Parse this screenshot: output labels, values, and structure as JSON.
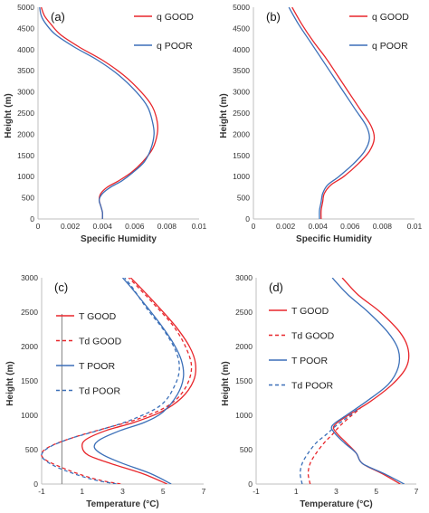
{
  "chart_data": [
    {
      "panel": "a",
      "type": "line",
      "panel_label": "(a)",
      "xlabel": "Specific Humidity",
      "ylabel": "Height (m)",
      "xlim": [
        0,
        0.01
      ],
      "ylim": [
        0,
        5000
      ],
      "xticks": [
        0,
        0.002,
        0.004,
        0.006,
        0.008,
        0.01
      ],
      "xtick_labels": [
        "0",
        "0.002",
        "0.004",
        "0.006",
        "0.008",
        "0.01"
      ],
      "yticks": [
        0,
        500,
        1000,
        1500,
        2000,
        2500,
        3000,
        3500,
        4000,
        4500,
        5000
      ],
      "legend_placement": "top-right",
      "series": [
        {
          "name": "q GOOD",
          "color": "#e8262b",
          "dash": "solid",
          "points": [
            [
              0.004,
              0
            ],
            [
              0.004,
              150
            ],
            [
              0.0039,
              300
            ],
            [
              0.0038,
              450
            ],
            [
              0.0039,
              600
            ],
            [
              0.0043,
              750
            ],
            [
              0.005,
              900
            ],
            [
              0.0058,
              1100
            ],
            [
              0.0065,
              1350
            ],
            [
              0.0071,
              1650
            ],
            [
              0.0074,
              2000
            ],
            [
              0.0074,
              2300
            ],
            [
              0.0071,
              2650
            ],
            [
              0.0064,
              3000
            ],
            [
              0.0053,
              3400
            ],
            [
              0.004,
              3750
            ],
            [
              0.0026,
              4050
            ],
            [
              0.0014,
              4350
            ],
            [
              0.0008,
              4600
            ],
            [
              0.0004,
              4800
            ],
            [
              0.0002,
              5000
            ]
          ]
        },
        {
          "name": "q POOR",
          "color": "#3b6fb8",
          "dash": "solid",
          "points": [
            [
              0.004,
              0
            ],
            [
              0.004,
              150
            ],
            [
              0.0039,
              300
            ],
            [
              0.0038,
              450
            ],
            [
              0.004,
              600
            ],
            [
              0.0045,
              750
            ],
            [
              0.0052,
              900
            ],
            [
              0.0059,
              1100
            ],
            [
              0.0066,
              1350
            ],
            [
              0.007,
              1650
            ],
            [
              0.0072,
              2000
            ],
            [
              0.0071,
              2300
            ],
            [
              0.0068,
              2650
            ],
            [
              0.0061,
              3000
            ],
            [
              0.005,
              3400
            ],
            [
              0.0037,
              3750
            ],
            [
              0.0023,
              4050
            ],
            [
              0.0011,
              4350
            ],
            [
              0.0005,
              4600
            ],
            [
              0.0002,
              4800
            ],
            [
              0.0001,
              5000
            ]
          ]
        }
      ]
    },
    {
      "panel": "b",
      "type": "line",
      "panel_label": "(b)",
      "xlabel": "Specific Humidity",
      "ylabel": "Height (m)",
      "xlim": [
        0,
        0.01
      ],
      "ylim": [
        0,
        5000
      ],
      "xticks": [
        0,
        0.002,
        0.004,
        0.006,
        0.008,
        0.01
      ],
      "xtick_labels": [
        "0",
        "0.002",
        "0.004",
        "0.006",
        "0.008",
        "0.01"
      ],
      "yticks": [
        0,
        500,
        1000,
        1500,
        2000,
        2500,
        3000,
        3500,
        4000,
        4500,
        5000
      ],
      "legend_placement": "top-right",
      "series": [
        {
          "name": "q GOOD",
          "color": "#e8262b",
          "dash": "solid",
          "points": [
            [
              0.0042,
              0
            ],
            [
              0.0042,
              200
            ],
            [
              0.0043,
              400
            ],
            [
              0.0044,
              600
            ],
            [
              0.0048,
              800
            ],
            [
              0.0056,
              1000
            ],
            [
              0.0065,
              1300
            ],
            [
              0.0072,
              1600
            ],
            [
              0.0075,
              1900
            ],
            [
              0.0073,
              2200
            ],
            [
              0.0066,
              2600
            ],
            [
              0.0059,
              3000
            ],
            [
              0.0052,
              3400
            ],
            [
              0.0045,
              3800
            ],
            [
              0.0037,
              4200
            ],
            [
              0.003,
              4600
            ],
            [
              0.0024,
              5000
            ]
          ]
        },
        {
          "name": "q POOR",
          "color": "#3b6fb8",
          "dash": "solid",
          "points": [
            [
              0.0041,
              0
            ],
            [
              0.0041,
              200
            ],
            [
              0.0042,
              400
            ],
            [
              0.0043,
              600
            ],
            [
              0.0046,
              800
            ],
            [
              0.0053,
              1000
            ],
            [
              0.0062,
              1300
            ],
            [
              0.0069,
              1600
            ],
            [
              0.0072,
              1900
            ],
            [
              0.007,
              2200
            ],
            [
              0.0063,
              2600
            ],
            [
              0.0056,
              3000
            ],
            [
              0.0049,
              3400
            ],
            [
              0.0042,
              3800
            ],
            [
              0.0035,
              4200
            ],
            [
              0.0028,
              4600
            ],
            [
              0.0022,
              5000
            ]
          ]
        }
      ]
    },
    {
      "panel": "c",
      "type": "line",
      "panel_label": "(c)",
      "xlabel": "Temperature (°C)",
      "ylabel": "Height (m)",
      "xlim": [
        -1,
        7
      ],
      "ylim": [
        0,
        3000
      ],
      "xticks": [
        -1,
        1,
        3,
        5,
        7
      ],
      "xtick_labels": [
        "-1",
        "1",
        "3",
        "5",
        "7"
      ],
      "yticks": [
        0,
        500,
        1000,
        1500,
        2000,
        2500,
        3000
      ],
      "legend_placement": "left",
      "series": [
        {
          "name": "T GOOD",
          "color": "#e8262b",
          "dash": "solid",
          "points": [
            [
              5.2,
              0
            ],
            [
              4.0,
              150
            ],
            [
              2.4,
              300
            ],
            [
              1.3,
              420
            ],
            [
              1.0,
              540
            ],
            [
              1.2,
              650
            ],
            [
              2.2,
              780
            ],
            [
              3.6,
              900
            ],
            [
              4.9,
              1050
            ],
            [
              5.9,
              1250
            ],
            [
              6.5,
              1500
            ],
            [
              6.6,
              1750
            ],
            [
              6.3,
              2000
            ],
            [
              5.6,
              2300
            ],
            [
              4.7,
              2600
            ],
            [
              3.9,
              2850
            ],
            [
              3.4,
              3000
            ]
          ]
        },
        {
          "name": "Td GOOD",
          "color": "#e8262b",
          "dash": "dashed",
          "points": [
            [
              2.9,
              0
            ],
            [
              1.8,
              60
            ],
            [
              0.8,
              150
            ],
            [
              0.0,
              240
            ],
            [
              -0.8,
              350
            ],
            [
              -1.0,
              450
            ],
            [
              -0.5,
              560
            ],
            [
              0.6,
              680
            ],
            [
              2.0,
              800
            ],
            [
              3.8,
              950
            ],
            [
              5.3,
              1150
            ],
            [
              6.1,
              1400
            ],
            [
              6.4,
              1700
            ],
            [
              6.1,
              2000
            ],
            [
              5.5,
              2300
            ],
            [
              4.6,
              2600
            ],
            [
              3.8,
              2850
            ],
            [
              3.3,
              3000
            ]
          ]
        },
        {
          "name": "T POOR",
          "color": "#3b6fb8",
          "dash": "solid",
          "points": [
            [
              5.4,
              0
            ],
            [
              4.4,
              150
            ],
            [
              3.0,
              300
            ],
            [
              2.0,
              430
            ],
            [
              1.6,
              540
            ],
            [
              1.9,
              650
            ],
            [
              2.9,
              780
            ],
            [
              4.1,
              900
            ],
            [
              5.0,
              1050
            ],
            [
              5.7,
              1300
            ],
            [
              6.0,
              1550
            ],
            [
              5.9,
              1800
            ],
            [
              5.5,
              2050
            ],
            [
              4.8,
              2350
            ],
            [
              4.0,
              2650
            ],
            [
              3.3,
              2900
            ],
            [
              3.0,
              3000
            ]
          ]
        },
        {
          "name": "Td POOR",
          "color": "#3b6fb8",
          "dash": "dashed",
          "points": [
            [
              2.7,
              0
            ],
            [
              1.6,
              60
            ],
            [
              0.6,
              150
            ],
            [
              -0.2,
              240
            ],
            [
              -0.8,
              340
            ],
            [
              -1.0,
              430
            ],
            [
              -0.6,
              540
            ],
            [
              0.4,
              660
            ],
            [
              1.8,
              780
            ],
            [
              3.4,
              930
            ],
            [
              4.9,
              1150
            ],
            [
              5.6,
              1450
            ],
            [
              5.8,
              1700
            ],
            [
              5.6,
              1950
            ],
            [
              5.0,
              2250
            ],
            [
              4.2,
              2550
            ],
            [
              3.5,
              2850
            ],
            [
              3.1,
              3000
            ]
          ]
        }
      ]
    },
    {
      "panel": "d",
      "type": "line",
      "panel_label": "(d)",
      "xlabel": "Temperature (°C)",
      "ylabel": "Height (m)",
      "xlim": [
        -1,
        7
      ],
      "ylim": [
        0,
        3000
      ],
      "xticks": [
        -1,
        1,
        3,
        5,
        7
      ],
      "xtick_labels": [
        "-1",
        "1",
        "3",
        "5",
        "7"
      ],
      "yticks": [
        0,
        500,
        1000,
        1500,
        2000,
        2500,
        3000
      ],
      "legend_placement": "left",
      "series": [
        {
          "name": "T GOOD",
          "color": "#e8262b",
          "dash": "solid",
          "points": [
            [
              6.2,
              0
            ],
            [
              5.3,
              150
            ],
            [
              4.3,
              300
            ],
            [
              4.0,
              450
            ],
            [
              3.5,
              600
            ],
            [
              3.0,
              750
            ],
            [
              2.9,
              850
            ],
            [
              3.6,
              1000
            ],
            [
              4.7,
              1200
            ],
            [
              5.8,
              1450
            ],
            [
              6.5,
              1700
            ],
            [
              6.6,
              1950
            ],
            [
              6.2,
              2200
            ],
            [
              5.2,
              2500
            ],
            [
              4.1,
              2750
            ],
            [
              3.3,
              3000
            ]
          ]
        },
        {
          "name": "Td GOOD",
          "color": "#e8262b",
          "dash": "dashed",
          "points": [
            [
              1.7,
              0
            ],
            [
              1.6,
              150
            ],
            [
              1.7,
              300
            ],
            [
              2.0,
              450
            ],
            [
              2.4,
              600
            ],
            [
              2.8,
              720
            ],
            [
              3.2,
              850
            ],
            [
              3.7,
              980
            ],
            [
              4.2,
              1100
            ]
          ]
        },
        {
          "name": "T POOR",
          "color": "#3b6fb8",
          "dash": "solid",
          "points": [
            [
              6.4,
              0
            ],
            [
              5.4,
              150
            ],
            [
              4.3,
              300
            ],
            [
              4.0,
              450
            ],
            [
              3.4,
              600
            ],
            [
              2.9,
              750
            ],
            [
              2.8,
              850
            ],
            [
              3.5,
              1000
            ],
            [
              4.5,
              1200
            ],
            [
              5.6,
              1450
            ],
            [
              6.1,
              1700
            ],
            [
              6.1,
              1950
            ],
            [
              5.6,
              2200
            ],
            [
              4.6,
              2500
            ],
            [
              3.6,
              2750
            ],
            [
              2.8,
              3000
            ]
          ]
        },
        {
          "name": "Td POOR",
          "color": "#3b6fb8",
          "dash": "dashed",
          "points": [
            [
              1.3,
              0
            ],
            [
              1.2,
              150
            ],
            [
              1.3,
              300
            ],
            [
              1.6,
              450
            ],
            [
              2.0,
              600
            ],
            [
              2.5,
              720
            ],
            [
              3.0,
              850
            ],
            [
              3.6,
              980
            ],
            [
              4.1,
              1100
            ]
          ]
        }
      ]
    }
  ]
}
